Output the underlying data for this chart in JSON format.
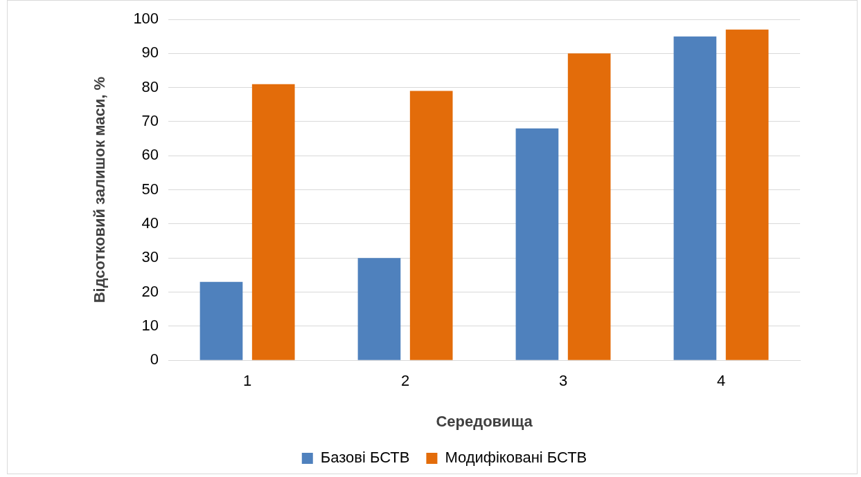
{
  "chart_data": {
    "type": "bar",
    "xlabel": "Середовища",
    "ylabel": "Відсотковий залишок маси, %",
    "categories": [
      "1",
      "2",
      "3",
      "4"
    ],
    "series": [
      {
        "name": "Базові БСТВ",
        "color": "#4f81bd",
        "values": [
          23,
          30,
          68,
          95
        ]
      },
      {
        "name": "Модифіковані БСТВ",
        "color": "#e36c0a",
        "values": [
          81,
          79,
          90,
          97
        ]
      }
    ],
    "ylim": [
      0,
      100
    ],
    "yticks": [
      0,
      10,
      20,
      30,
      40,
      50,
      60,
      70,
      80,
      90,
      100
    ],
    "grid": "y",
    "legend": "bottom"
  }
}
